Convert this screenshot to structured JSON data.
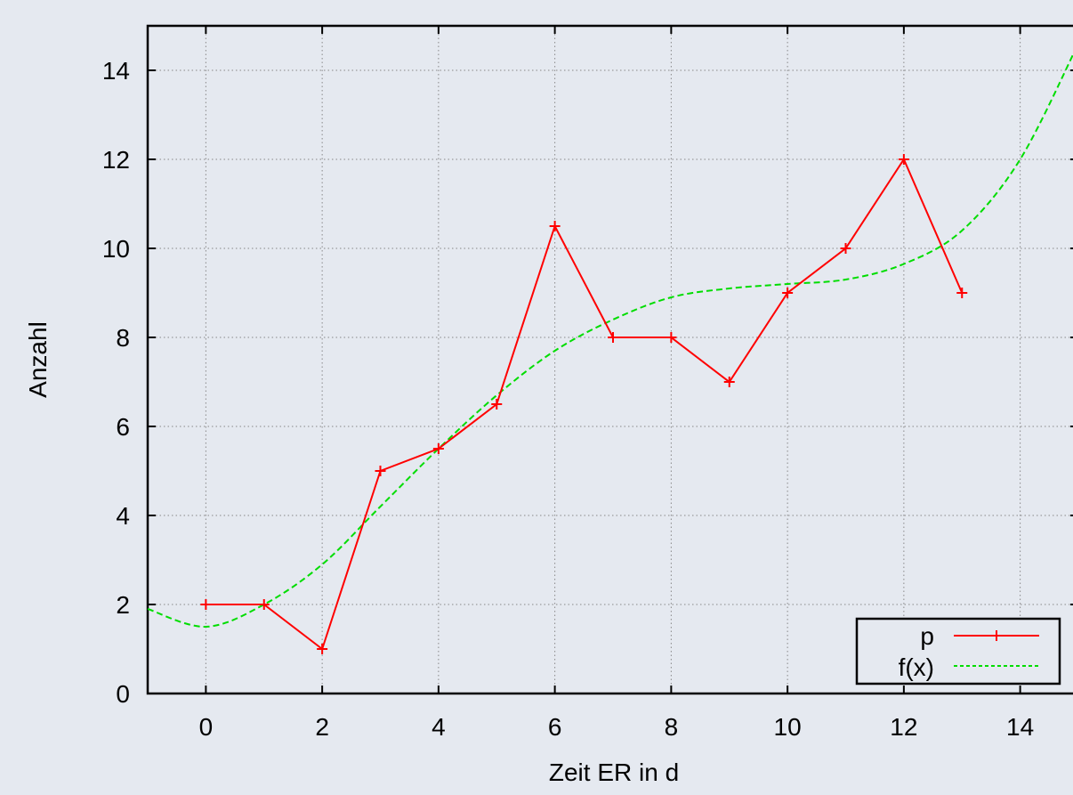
{
  "chart_data": {
    "type": "line",
    "title": "",
    "xlabel": "Zeit ER in d",
    "ylabel": "Anzahl",
    "xlim": [
      -1,
      15
    ],
    "ylim": [
      0,
      15
    ],
    "x_ticks": [
      "0",
      "2",
      "4",
      "6",
      "8",
      "10",
      "12",
      "14"
    ],
    "y_ticks": [
      "0",
      "2",
      "4",
      "6",
      "8",
      "10",
      "12",
      "14"
    ],
    "grid": true,
    "legend_position": "bottom-right",
    "series": [
      {
        "name": "p",
        "color": "#ff0000",
        "style": "line-with-plus-markers",
        "x": [
          0,
          1,
          2,
          3,
          4,
          5,
          6,
          7,
          8,
          9,
          10,
          11,
          12,
          13
        ],
        "y": [
          2,
          2,
          1,
          5,
          5.5,
          6.5,
          10.5,
          8,
          8,
          7,
          9,
          10,
          12,
          9
        ]
      },
      {
        "name": "f(x)",
        "color": "#00dd00",
        "style": "dashed",
        "x": [
          -1,
          0,
          1,
          2,
          3,
          4,
          5,
          6,
          7,
          8,
          9,
          10,
          11,
          12,
          13,
          14,
          15
        ],
        "y": [
          1.9,
          1.5,
          2.0,
          2.9,
          4.2,
          5.5,
          6.7,
          7.7,
          8.4,
          8.9,
          9.1,
          9.2,
          9.3,
          9.65,
          10.4,
          12.0,
          14.6
        ]
      }
    ]
  }
}
